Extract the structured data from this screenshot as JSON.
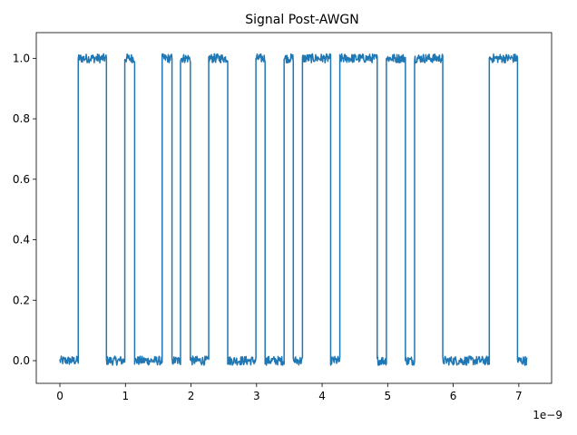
{
  "chart_data": {
    "type": "line",
    "title": "Signal Post-AWGN",
    "xlabel": "",
    "ylabel": "",
    "x_offset_text": "1e−9",
    "xlim": [
      -0.36,
      7.5
    ],
    "ylim": [
      -0.075,
      1.085
    ],
    "x_ticks": [
      0,
      1,
      2,
      3,
      4,
      5,
      6,
      7
    ],
    "y_ticks": [
      0.0,
      0.2,
      0.4,
      0.6,
      0.8,
      1.0
    ],
    "y_tick_labels": [
      "0.0",
      "0.2",
      "0.4",
      "0.6",
      "0.8",
      "1.0"
    ],
    "grid": false,
    "legend": "none",
    "line_color": "#1f77b4",
    "noise_amplitude": 0.015,
    "x_start": 0.0,
    "x_end": 7.12,
    "series": [
      {
        "levels": [
          {
            "from": 0.0,
            "to": 0.28,
            "level": 0
          },
          {
            "from": 0.28,
            "to": 0.71,
            "level": 1
          },
          {
            "from": 0.71,
            "to": 0.99,
            "level": 0
          },
          {
            "from": 0.99,
            "to": 1.14,
            "level": 1
          },
          {
            "from": 1.14,
            "to": 1.56,
            "level": 0
          },
          {
            "from": 1.56,
            "to": 1.71,
            "level": 1
          },
          {
            "from": 1.71,
            "to": 1.84,
            "level": 0
          },
          {
            "from": 1.84,
            "to": 1.99,
            "level": 1
          },
          {
            "from": 1.99,
            "to": 2.27,
            "level": 0
          },
          {
            "from": 2.27,
            "to": 2.56,
            "level": 1
          },
          {
            "from": 2.56,
            "to": 2.99,
            "level": 0
          },
          {
            "from": 2.99,
            "to": 3.13,
            "level": 1
          },
          {
            "from": 3.13,
            "to": 3.42,
            "level": 0
          },
          {
            "from": 3.42,
            "to": 3.56,
            "level": 1
          },
          {
            "from": 3.56,
            "to": 3.7,
            "level": 0
          },
          {
            "from": 3.7,
            "to": 4.13,
            "level": 1
          },
          {
            "from": 4.13,
            "to": 4.27,
            "level": 0
          },
          {
            "from": 4.27,
            "to": 4.84,
            "level": 1
          },
          {
            "from": 4.84,
            "to": 4.98,
            "level": 0
          },
          {
            "from": 4.98,
            "to": 5.27,
            "level": 1
          },
          {
            "from": 5.27,
            "to": 5.41,
            "level": 0
          },
          {
            "from": 5.41,
            "to": 5.84,
            "level": 1
          },
          {
            "from": 5.84,
            "to": 6.55,
            "level": 0
          },
          {
            "from": 6.55,
            "to": 6.98,
            "level": 1
          },
          {
            "from": 6.98,
            "to": 7.12,
            "level": 0
          }
        ]
      }
    ]
  }
}
